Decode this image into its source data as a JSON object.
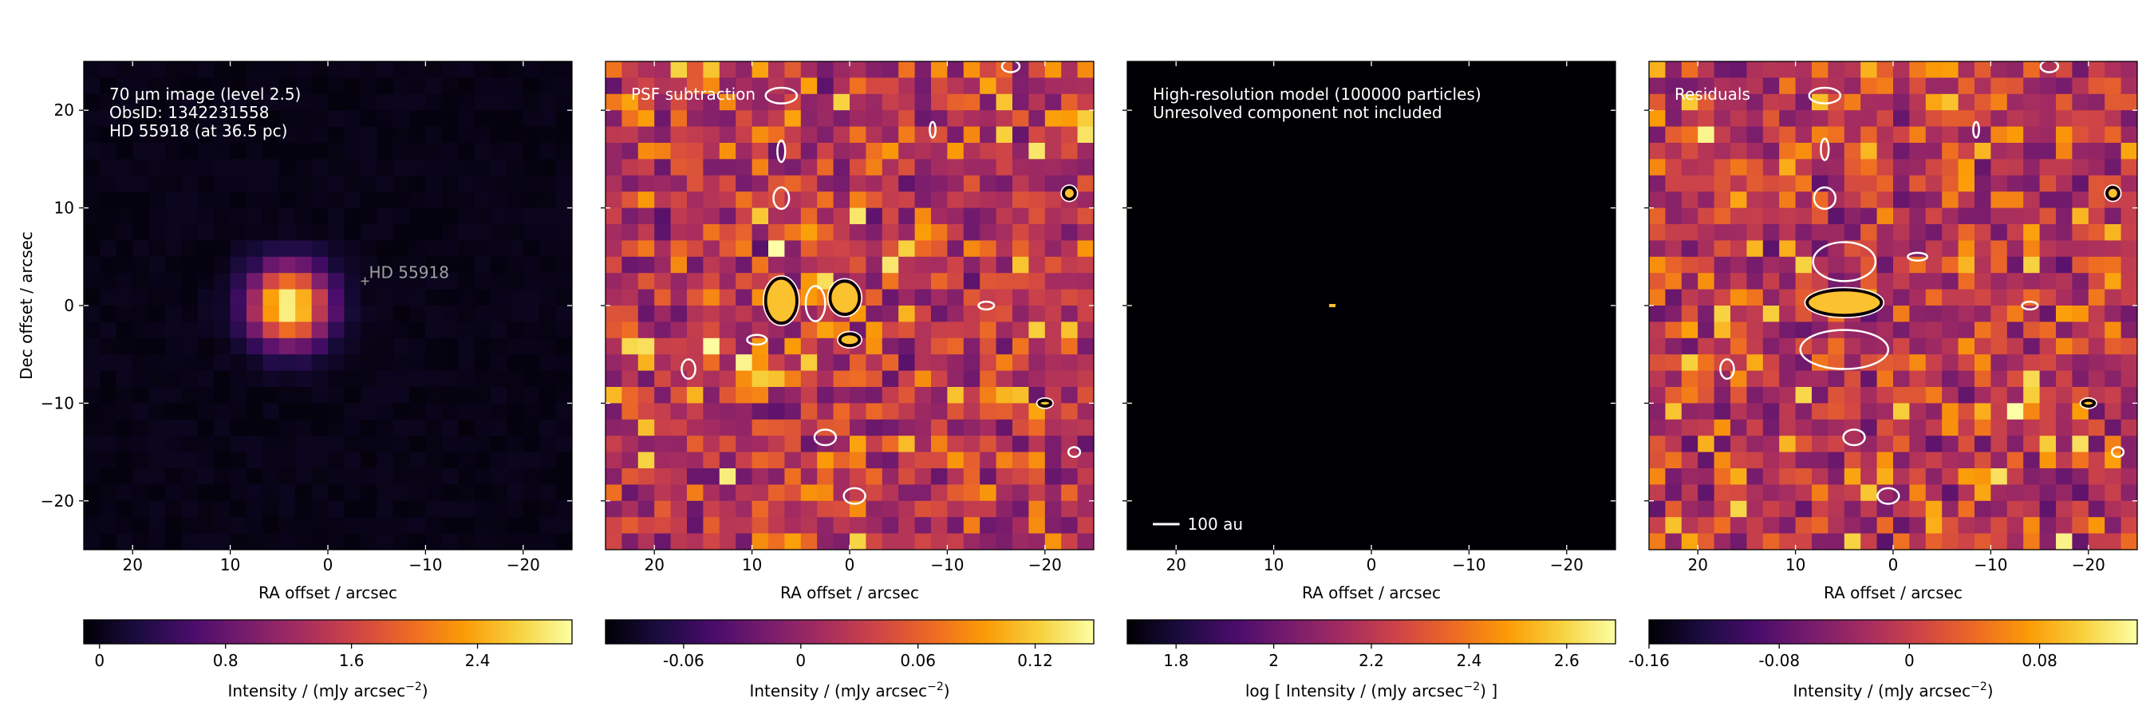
{
  "colors": {
    "inferno_stops": [
      "#000004",
      "#1b0c41",
      "#4a0c6b",
      "#781c6d",
      "#a52c60",
      "#cf4446",
      "#ed6925",
      "#fb9b06",
      "#f7d13d",
      "#fcffa4"
    ],
    "contour_dark": "#000000",
    "contour_light": "#ffffff",
    "annotation_text": "#ffffff",
    "label_gray": "#a0a0a0"
  },
  "chart_data": [
    {
      "type": "heatmap",
      "panel": "observed image",
      "annotation_lines": [
        "70 µm image (level 2.5)",
        "ObsID: 1342231558",
        "HD 55918 (at 36.5 pc)"
      ],
      "star_marker_label": "HD  55918",
      "star_marker_position": [
        -3.8,
        2.5
      ],
      "xlabel": "RA offset / arcsec",
      "ylabel": "Dec offset / arcsec",
      "xlim": [
        25,
        -25
      ],
      "ylim": [
        -25,
        25
      ],
      "xticks": [
        20,
        10,
        0,
        -10,
        -20
      ],
      "xtick_labels": [
        "20",
        "10",
        "0",
        "−10",
        "−20"
      ],
      "yticks": [
        20,
        10,
        0,
        -10,
        -20
      ],
      "ytick_labels": [
        "20",
        "10",
        "0",
        "−10",
        "−20"
      ],
      "grid": false,
      "emission": {
        "peak_position": [
          4,
          0
        ],
        "peak_value": 3.0,
        "fwhm_arcsec": 6.5
      },
      "colorbar": {
        "label": "Intensity / (mJy arcsec",
        "label_exponent": "−2",
        "label_close": ")",
        "range": [
          -0.1,
          3.0
        ],
        "ticks": [
          0,
          0.8,
          1.6,
          2.4
        ],
        "tick_labels": [
          "0",
          "0.8",
          "1.6",
          "2.4"
        ]
      }
    },
    {
      "type": "heatmap",
      "panel": "PSF subtraction",
      "annotation_lines": [
        "PSF subtraction"
      ],
      "xlabel": "RA offset / arcsec",
      "xlim": [
        25,
        -25
      ],
      "ylim": [
        -25,
        25
      ],
      "xticks": [
        20,
        10,
        0,
        -10,
        -20
      ],
      "xtick_labels": [
        "20",
        "10",
        "0",
        "−10",
        "−20"
      ],
      "grid": false,
      "contours": [
        {
          "x": 7,
          "y": 0.5,
          "rx": 1.6,
          "ry": 2.3,
          "level": "high"
        },
        {
          "x": 0.5,
          "y": 0.8,
          "rx": 1.5,
          "ry": 1.7,
          "level": "high"
        },
        {
          "x": 0,
          "y": -3.5,
          "rx": 1.0,
          "ry": 0.6,
          "level": "high"
        },
        {
          "x": 3.5,
          "y": 0.2,
          "rx": 1.0,
          "ry": 1.8,
          "level": "low"
        },
        {
          "x": 9.5,
          "y": -3.5,
          "rx": 1.0,
          "ry": 0.5,
          "level": "low"
        },
        {
          "x": 16.5,
          "y": -6.5,
          "rx": 0.7,
          "ry": 1.0,
          "level": "low"
        },
        {
          "x": 2.5,
          "y": -13.5,
          "rx": 1.1,
          "ry": 0.8,
          "level": "low"
        },
        {
          "x": -0.5,
          "y": -19.5,
          "rx": 1.1,
          "ry": 0.8,
          "level": "low"
        },
        {
          "x": 7,
          "y": 21.5,
          "rx": 1.6,
          "ry": 0.8,
          "level": "low"
        },
        {
          "x": 7,
          "y": 15.8,
          "rx": 0.4,
          "ry": 1.1,
          "level": "low"
        },
        {
          "x": 7,
          "y": 11,
          "rx": 0.8,
          "ry": 1.1,
          "level": "low"
        },
        {
          "x": -8.5,
          "y": 18,
          "rx": 0.3,
          "ry": 0.8,
          "level": "low"
        },
        {
          "x": -14,
          "y": 0,
          "rx": 0.8,
          "ry": 0.4,
          "level": "low"
        },
        {
          "x": -22.5,
          "y": 11.5,
          "rx": 0.6,
          "ry": 0.6,
          "level": "high"
        },
        {
          "x": -20,
          "y": -10,
          "rx": 0.6,
          "ry": 0.3,
          "level": "high"
        },
        {
          "x": -23,
          "y": -15,
          "rx": 0.6,
          "ry": 0.5,
          "level": "low"
        },
        {
          "x": -16.5,
          "y": 24.5,
          "rx": 0.9,
          "ry": 0.6,
          "level": "low"
        }
      ],
      "colorbar": {
        "label": "Intensity / (mJy arcsec",
        "label_exponent": "−2",
        "label_close": ")",
        "range": [
          -0.1,
          0.15
        ],
        "ticks": [
          -0.06,
          0,
          0.06,
          0.12
        ],
        "tick_labels": [
          "-0.06",
          "0",
          "0.06",
          "0.12"
        ]
      }
    },
    {
      "type": "heatmap",
      "panel": "high-resolution model",
      "annotation_lines": [
        "High-resolution model (100000 particles)",
        "Unresolved component not included"
      ],
      "scale_bar_label": "100 au",
      "scale_bar_length_arcsec": 2.74,
      "xlabel": "RA offset / arcsec",
      "xlim": [
        25,
        -25
      ],
      "ylim": [
        -25,
        25
      ],
      "xticks": [
        20,
        10,
        0,
        -10,
        -20
      ],
      "xtick_labels": [
        "20",
        "10",
        "0",
        "−10",
        "−20"
      ],
      "grid": false,
      "source_position": [
        4,
        0
      ],
      "colorbar": {
        "label": "log [ Intensity / (mJy arcsec",
        "label_exponent": "−2",
        "label_close": ") ]",
        "range": [
          1.7,
          2.7
        ],
        "ticks": [
          1.8,
          2.0,
          2.2,
          2.4,
          2.6
        ],
        "tick_labels": [
          "1.8",
          "2",
          "2.2",
          "2.4",
          "2.6"
        ]
      }
    },
    {
      "type": "heatmap",
      "panel": "residuals",
      "annotation_lines": [
        "Residuals"
      ],
      "xlabel": "RA offset / arcsec",
      "xlim": [
        25,
        -25
      ],
      "ylim": [
        -25,
        25
      ],
      "xticks": [
        20,
        10,
        0,
        -10,
        -20
      ],
      "xtick_labels": [
        "20",
        "10",
        "0",
        "−10",
        "−20"
      ],
      "grid": false,
      "contours": [
        {
          "x": 5,
          "y": 0.3,
          "rx": 3.8,
          "ry": 1.3,
          "level": "high"
        },
        {
          "x": 5,
          "y": 4.5,
          "rx": 3.2,
          "ry": 2.0,
          "level": "low"
        },
        {
          "x": 5,
          "y": -4.5,
          "rx": 4.5,
          "ry": 2.0,
          "level": "low"
        },
        {
          "x": -2.5,
          "y": 5,
          "rx": 1.0,
          "ry": 0.4,
          "level": "low"
        },
        {
          "x": 7,
          "y": 21.5,
          "rx": 1.6,
          "ry": 0.8,
          "level": "low"
        },
        {
          "x": 7,
          "y": 16,
          "rx": 0.4,
          "ry": 1.1,
          "level": "low"
        },
        {
          "x": 7,
          "y": 11,
          "rx": 1.1,
          "ry": 1.1,
          "level": "low"
        },
        {
          "x": 17,
          "y": -6.5,
          "rx": 0.7,
          "ry": 1.0,
          "level": "low"
        },
        {
          "x": 4,
          "y": -13.5,
          "rx": 1.1,
          "ry": 0.8,
          "level": "low"
        },
        {
          "x": 0.5,
          "y": -19.5,
          "rx": 1.1,
          "ry": 0.8,
          "level": "low"
        },
        {
          "x": -14,
          "y": 0,
          "rx": 0.8,
          "ry": 0.4,
          "level": "low"
        },
        {
          "x": -8.5,
          "y": 18,
          "rx": 0.3,
          "ry": 0.8,
          "level": "low"
        },
        {
          "x": -22.5,
          "y": 11.5,
          "rx": 0.6,
          "ry": 0.6,
          "level": "high"
        },
        {
          "x": -20,
          "y": -10,
          "rx": 0.6,
          "ry": 0.3,
          "level": "high"
        },
        {
          "x": -23,
          "y": -15,
          "rx": 0.6,
          "ry": 0.5,
          "level": "low"
        },
        {
          "x": -16,
          "y": 24.5,
          "rx": 0.9,
          "ry": 0.6,
          "level": "low"
        }
      ],
      "colorbar": {
        "label": "Intensity / (mJy arcsec",
        "label_exponent": "−2",
        "label_close": ")",
        "range": [
          -0.16,
          0.14
        ],
        "ticks": [
          -0.16,
          -0.08,
          0,
          0.08
        ],
        "tick_labels": [
          "-0.16",
          "-0.08",
          "0",
          "0.08"
        ]
      }
    }
  ]
}
